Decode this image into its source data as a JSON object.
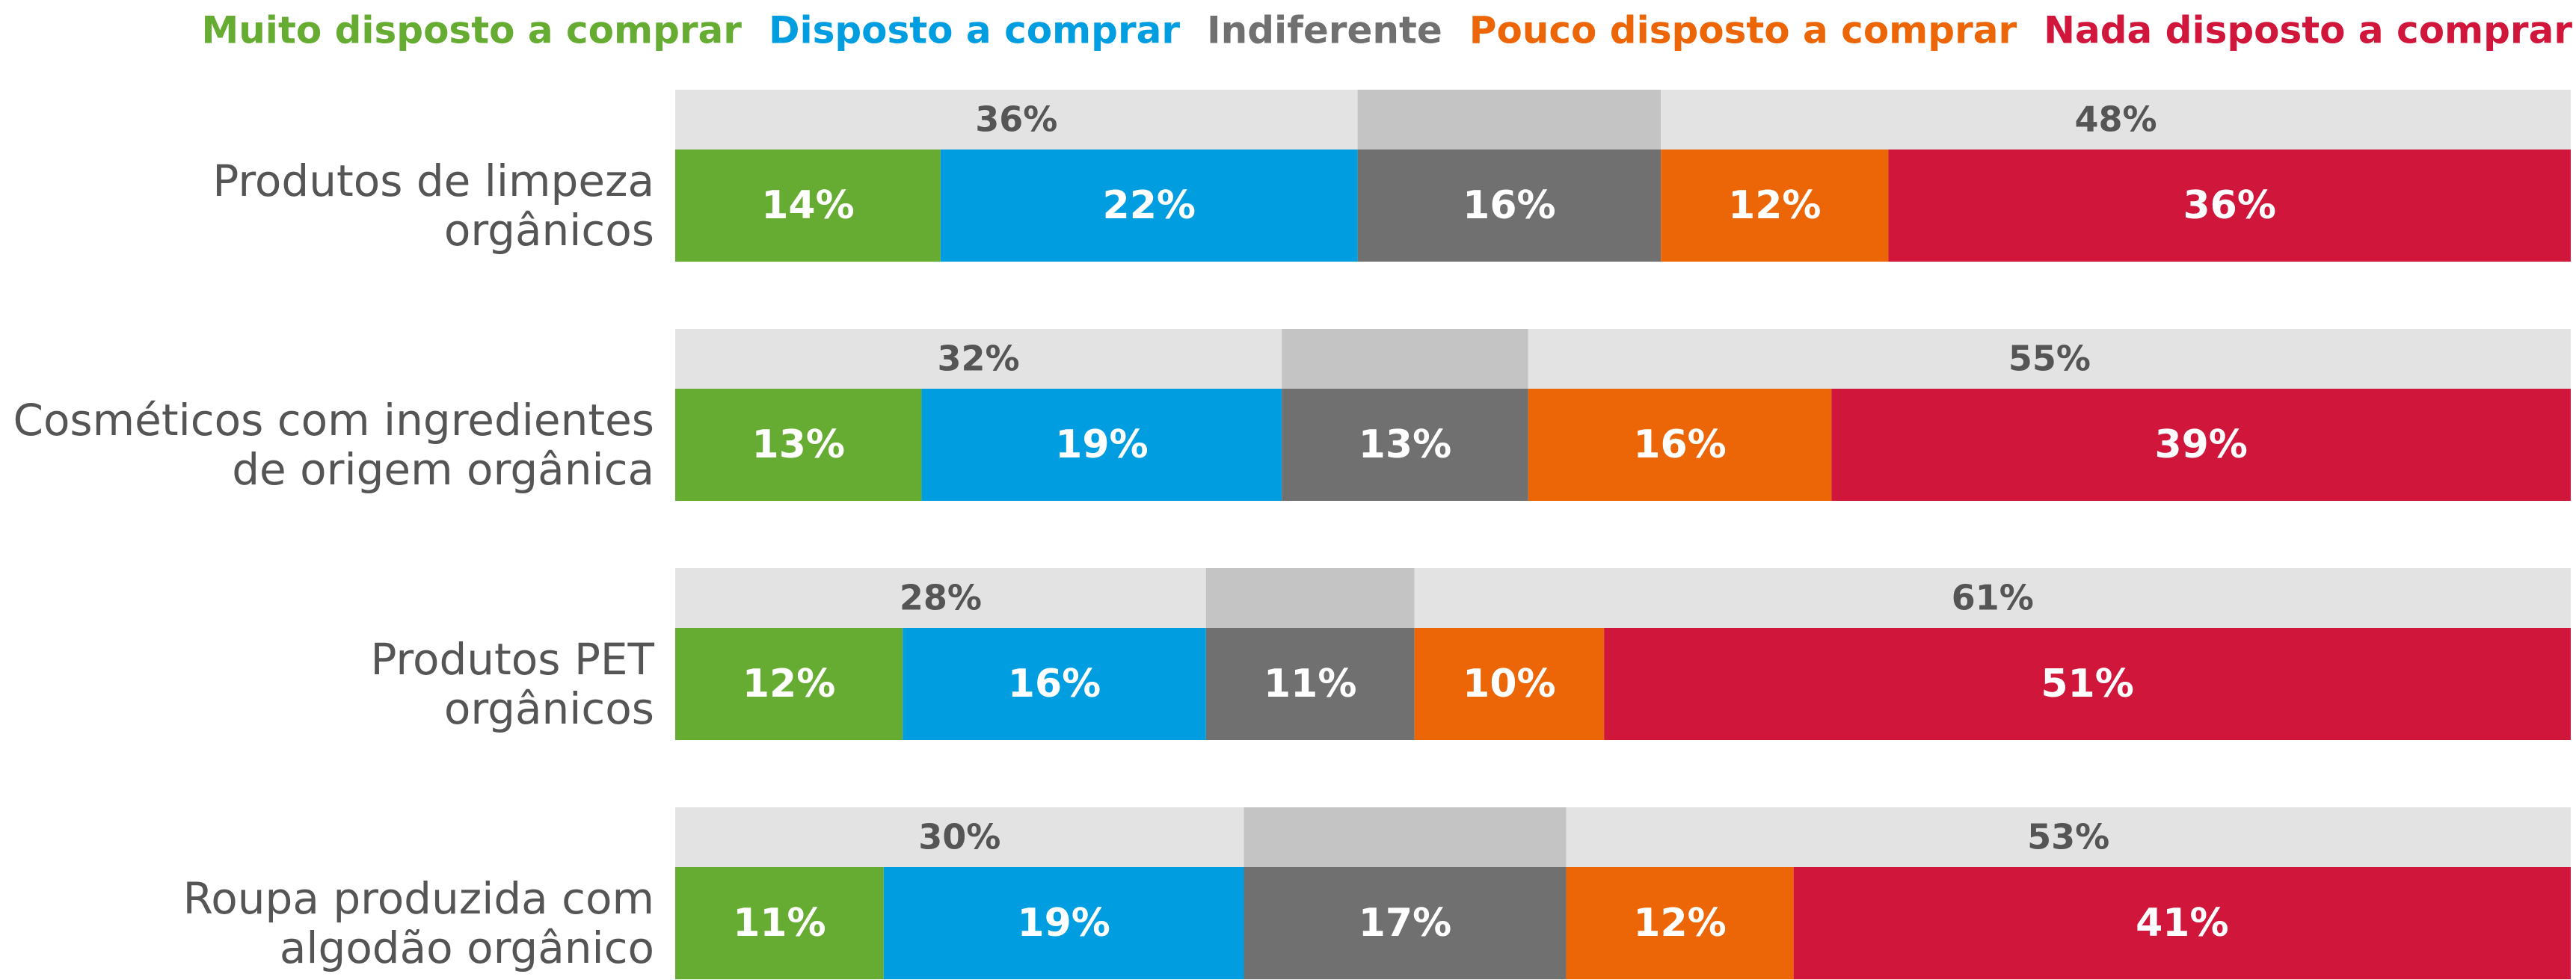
{
  "chart_data": {
    "type": "stacked-bar-horizontal",
    "categories": [
      "Produtos de limpeza\norgânicos",
      "Cosméticos com ingredientes\nde origem orgânica",
      "Produtos PET\norgânicos",
      "Roupa produzida com\nalgodão orgânico"
    ],
    "xlim": [
      0,
      100
    ],
    "series": [
      {
        "name": "Muito disposto a comprar",
        "color": "#66ac32",
        "values": [
          14,
          13,
          12,
          11
        ],
        "value_labels": [
          "14%",
          "13%",
          "12%",
          "11%"
        ]
      },
      {
        "name": "Disposto a comprar",
        "color": "#009ee0",
        "values": [
          22,
          19,
          16,
          19
        ],
        "value_labels": [
          "22%",
          "19%",
          "16%",
          "19%"
        ]
      },
      {
        "name": "Indiferente",
        "color": "#707070",
        "values": [
          16,
          13,
          11,
          17
        ],
        "value_labels": [
          "16%",
          "13%",
          "11%",
          "17%"
        ]
      },
      {
        "name": "Pouco disposto a comprar",
        "color": "#ec6608",
        "values": [
          12,
          16,
          10,
          12
        ],
        "value_labels": [
          "12%",
          "16%",
          "10%",
          "12%"
        ]
      },
      {
        "name": "Nada disposto a comprar",
        "color": "#d0163a",
        "values": [
          36,
          39,
          51,
          41
        ],
        "value_labels": [
          "36%",
          "39%",
          "51%",
          "41%"
        ]
      }
    ],
    "positive_total": {
      "values": [
        36,
        32,
        28,
        30
      ],
      "value_labels": [
        "36%",
        "32%",
        "28%",
        "30%"
      ]
    },
    "negative_total": {
      "values": [
        48,
        55,
        61,
        53
      ],
      "value_labels": [
        "48%",
        "55%",
        "61%",
        "53%"
      ]
    }
  }
}
